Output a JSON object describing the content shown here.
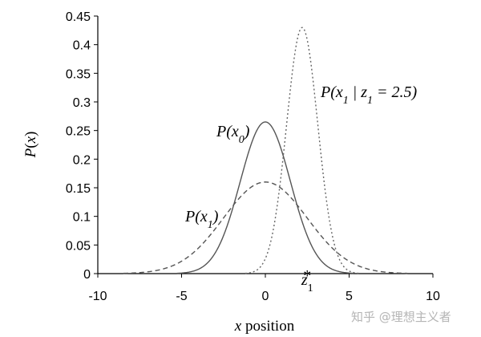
{
  "watermark": "知乎 @理想主义者",
  "chart_data": {
    "type": "line",
    "xlabel": "x position",
    "ylabel": "P(x)",
    "xlim": [
      -10,
      10
    ],
    "ylim": [
      0,
      0.45
    ],
    "x_ticks": [
      -10,
      -5,
      0,
      5,
      10
    ],
    "x_tick_labels": [
      "-10",
      "-5",
      "0",
      "5",
      "10"
    ],
    "y_ticks": [
      0,
      0.05,
      0.1,
      0.15,
      0.2,
      0.25,
      0.3,
      0.35,
      0.4,
      0.45
    ],
    "y_tick_labels": [
      "0",
      "0.05",
      "0.1",
      "0.15",
      "0.2",
      "0.25",
      "0.3",
      "0.35",
      "0.4",
      "0.45"
    ],
    "grid": false,
    "legend": "none",
    "series": [
      {
        "name": "P(x0)",
        "style": "solid",
        "color": "#555555",
        "mean": 0.0,
        "sd": 1.5,
        "peak": 0.265
      },
      {
        "name": "P(x1)",
        "style": "dashed",
        "color": "#555555",
        "mean": 0.0,
        "sd": 2.5,
        "peak": 0.16
      },
      {
        "name": "P(x1 | z1 = 2.5)",
        "style": "dotted",
        "color": "#666666",
        "mean": 2.2,
        "sd": 0.93,
        "peak": 0.43
      }
    ],
    "annotations": {
      "p_x0": "P(x0)",
      "p_x1": "P(x1)",
      "posterior": "P(x1 | z1 = 2.5)",
      "z1": "z1",
      "z1_marker": "*",
      "z1_value": 2.5
    }
  }
}
